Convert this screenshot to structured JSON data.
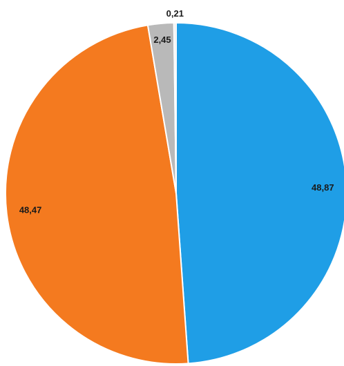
{
  "chart_data": {
    "type": "pie",
    "title": "",
    "start": "top",
    "direction": "clockwise",
    "slices": [
      {
        "value": 48.87,
        "label": "48,87",
        "color": "#1f9ee6"
      },
      {
        "value": 48.47,
        "label": "48,47",
        "color": "#f47a1f"
      },
      {
        "value": 2.45,
        "label": "2,45",
        "color": "#b9b9b9"
      },
      {
        "value": 0.21,
        "label": "0,21",
        "color": "#e6e6e6"
      }
    ]
  }
}
